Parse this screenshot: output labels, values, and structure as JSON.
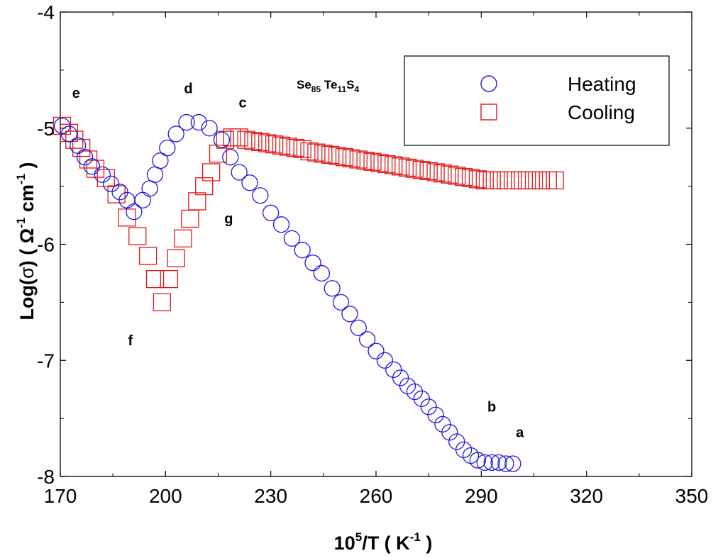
{
  "chart_data": {
    "type": "scatter",
    "title": "",
    "xlabel": {
      "base": "10",
      "sup": "5",
      "rest": "/T  ( K",
      "sup2": "-1",
      "end": " )"
    },
    "ylabel": {
      "pre": "Log(",
      "sigma": "σ",
      "mid": ") ( Ω",
      "sup1": "-1",
      "cm": " cm",
      "sup2": "-1",
      "end": " )"
    },
    "xlim": [
      170,
      350
    ],
    "ylim": [
      -8,
      -4
    ],
    "xticks": [
      "170",
      "200",
      "230",
      "260",
      "290",
      "320",
      "350"
    ],
    "yticks": [
      "-4",
      "-5",
      "-6",
      "-7",
      "-8"
    ],
    "compound": {
      "se": "Se",
      "se_sub": "85",
      "te": " Te",
      "te_sub": "11",
      "s": "S",
      "s_sub": "4"
    },
    "legend": {
      "position": "top-right",
      "entries": [
        "Heating",
        "Cooling"
      ]
    },
    "colors": {
      "heating": "#1a1adf",
      "cooling": "#e01818",
      "axis": "#000000"
    },
    "annotations": [
      {
        "text": "a",
        "x": 301,
        "y": -7.66
      },
      {
        "text": "b",
        "x": 293,
        "y": -7.44
      },
      {
        "text": "c",
        "x": 222,
        "y": -4.82
      },
      {
        "text": "d",
        "x": 206.5,
        "y": -4.7
      },
      {
        "text": "e",
        "x": 174.5,
        "y": -4.74
      },
      {
        "text": "f",
        "x": 190,
        "y": -6.87
      },
      {
        "text": "g",
        "x": 218,
        "y": -5.82
      }
    ],
    "series": [
      {
        "name": "Heating",
        "marker": "circle",
        "x": [
          170.5,
          172.5,
          175,
          177,
          179,
          182,
          184.5,
          187,
          189,
          191,
          193.5,
          195.5,
          197,
          198.5,
          200.5,
          203,
          206,
          209.5,
          212.5,
          216,
          218.5,
          221,
          224,
          227,
          230,
          233,
          236,
          239,
          242,
          244.5,
          247.5,
          250,
          252.5,
          255,
          257.5,
          260,
          262.5,
          265,
          267,
          269,
          271,
          273,
          275,
          277,
          279,
          281,
          283,
          285,
          287,
          289,
          291,
          293,
          295,
          297,
          299
        ],
        "y": [
          -4.98,
          -5.05,
          -5.15,
          -5.25,
          -5.33,
          -5.4,
          -5.48,
          -5.55,
          -5.62,
          -5.72,
          -5.62,
          -5.52,
          -5.4,
          -5.28,
          -5.17,
          -5.05,
          -4.95,
          -4.95,
          -5.0,
          -5.1,
          -5.25,
          -5.38,
          -5.47,
          -5.58,
          -5.73,
          -5.83,
          -5.95,
          -6.05,
          -6.16,
          -6.25,
          -6.38,
          -6.5,
          -6.6,
          -6.72,
          -6.82,
          -6.92,
          -7.0,
          -7.08,
          -7.15,
          -7.22,
          -7.27,
          -7.33,
          -7.4,
          -7.47,
          -7.55,
          -7.62,
          -7.7,
          -7.77,
          -7.82,
          -7.86,
          -7.88,
          -7.88,
          -7.88,
          -7.89,
          -7.89
        ]
      },
      {
        "name": "Cooling",
        "marker": "square",
        "x": [
          170.5,
          172.5,
          174,
          176,
          178,
          180,
          183,
          186,
          189,
          192,
          195,
          197,
          199,
          201,
          203,
          205,
          207,
          209,
          211,
          213,
          215,
          217,
          219,
          221,
          223,
          225,
          227,
          229,
          231,
          233,
          235,
          237,
          239,
          241,
          243,
          245,
          247,
          249,
          251,
          253,
          255,
          257,
          259,
          261,
          263,
          265,
          267,
          269,
          271,
          273,
          275,
          277,
          279,
          281,
          283,
          285,
          287,
          289,
          291,
          293,
          295,
          297,
          299,
          301,
          303,
          305,
          307,
          309,
          311
        ],
        "y": [
          -4.98,
          -5.04,
          -5.1,
          -5.17,
          -5.27,
          -5.35,
          -5.43,
          -5.57,
          -5.77,
          -5.93,
          -6.1,
          -6.3,
          -6.5,
          -6.3,
          -6.12,
          -5.95,
          -5.78,
          -5.63,
          -5.5,
          -5.38,
          -5.22,
          -5.1,
          -5.08,
          -5.08,
          -5.1,
          -5.11,
          -5.12,
          -5.13,
          -5.14,
          -5.15,
          -5.16,
          -5.17,
          -5.18,
          -5.2,
          -5.21,
          -5.22,
          -5.23,
          -5.24,
          -5.25,
          -5.26,
          -5.27,
          -5.28,
          -5.29,
          -5.3,
          -5.31,
          -5.32,
          -5.33,
          -5.34,
          -5.35,
          -5.36,
          -5.37,
          -5.38,
          -5.39,
          -5.4,
          -5.41,
          -5.42,
          -5.43,
          -5.44,
          -5.45,
          -5.45,
          -5.45,
          -5.45,
          -5.45,
          -5.45,
          -5.45,
          -5.45,
          -5.45,
          -5.45,
          -5.45
        ]
      }
    ]
  }
}
